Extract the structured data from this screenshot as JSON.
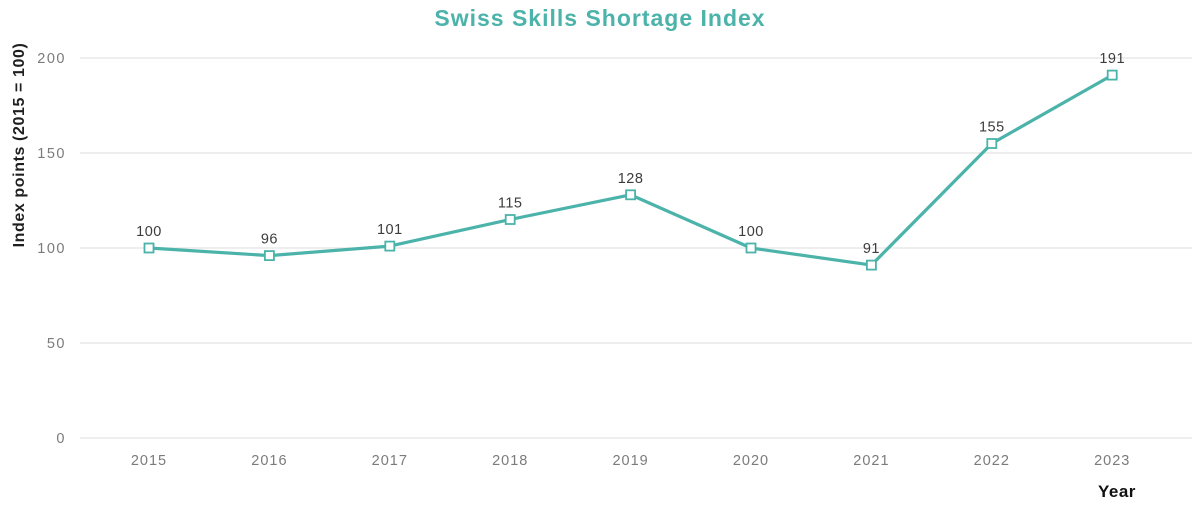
{
  "title": "Swiss Skills Shortage Index",
  "colors": {
    "accent_teal": "#4bb3a9",
    "marker_fill": "#ffffff",
    "gridline": "#e3e3e3",
    "tick_text": "#7b7b7b",
    "data_label_text": "#3c3c3c",
    "title_text": "#4bb3a9",
    "axis_title_text": "#1f1f1f"
  },
  "chart_data": {
    "type": "line",
    "title": "Swiss Skills Shortage Index",
    "xlabel": "Year",
    "ylabel": "Index points (2015 = 100)",
    "categories": [
      "2015",
      "2016",
      "2017",
      "2018",
      "2019",
      "2020",
      "2021",
      "2022",
      "2023"
    ],
    "series": [
      {
        "name": "Swiss Skills Shortage Index",
        "values": [
          100,
          96,
          101,
          115,
          128,
          100,
          91,
          155,
          191
        ]
      }
    ],
    "data_labels": [
      "100",
      "96",
      "101",
      "115",
      "128",
      "100",
      "91",
      "155",
      "191"
    ],
    "yticks": [
      0,
      50,
      100,
      150,
      200
    ],
    "ytick_labels": [
      "0",
      "50",
      "100",
      "150",
      "200"
    ],
    "ylim": [
      0,
      200
    ],
    "grid": "horizontal",
    "legend": "none",
    "marker": "open-square"
  }
}
